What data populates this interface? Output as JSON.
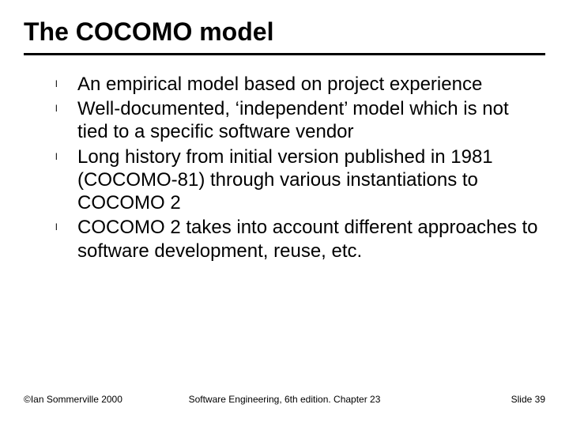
{
  "title": "The COCOMO model",
  "title_fontsize": 32,
  "title_fontweight": "bold",
  "rule_color": "#000000",
  "bullet_marker": "l",
  "bullets": [
    "An empirical model based on project experience",
    "Well-documented, ‘independent’ model which is not tied to a specific software vendor",
    "Long history from initial version published in 1981 (COCOMO-81) through various instantiations to COCOMO 2",
    "COCOMO 2 takes into account different approaches to software development, reuse, etc."
  ],
  "body_fontsize": 24,
  "body_color": "#000000",
  "footer": {
    "left": "©Ian Sommerville 2000",
    "center": "Software Engineering, 6th edition. Chapter 23",
    "right": "Slide 39",
    "fontsize": 12
  },
  "background_color": "#ffffff"
}
